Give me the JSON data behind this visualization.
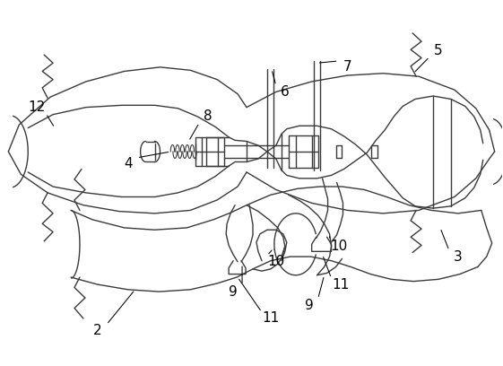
{
  "background_color": "#ffffff",
  "line_color": "#3a3a3a",
  "line_width": 1.0,
  "label_color": "#000000",
  "label_fontsize": 11,
  "figsize": [
    5.61,
    4.08
  ],
  "dpi": 100
}
